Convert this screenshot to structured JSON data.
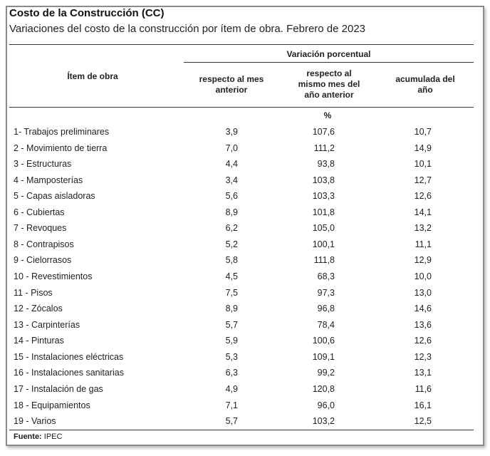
{
  "title": "Costo de la Construcción (CC)",
  "subtitle": "Variaciones del costo de la construcción por ítem de obra. Febrero de 2023",
  "table": {
    "item_header": "Ítem de obra",
    "group_header": "Variación porcentual",
    "columns": [
      "respecto al mes anterior",
      "respecto al mismo mes del año anterior",
      "acumulada del año"
    ],
    "unit": "%",
    "rows": [
      [
        "1- Trabajos  preliminares",
        "3,9",
        "107,6",
        "10,7"
      ],
      [
        "2 - Movimiento de tierra",
        "7,0",
        "111,2",
        "14,9"
      ],
      [
        "3 - Estructuras",
        "4,4",
        "93,8",
        "10,1"
      ],
      [
        "4 - Mamposterías",
        "3,4",
        "103,8",
        "12,7"
      ],
      [
        "5 - Capas aisladoras",
        "5,6",
        "103,3",
        "12,6"
      ],
      [
        "6 - Cubiertas",
        "8,9",
        "101,8",
        "14,1"
      ],
      [
        "7 - Revoques",
        "6,2",
        "105,0",
        "13,2"
      ],
      [
        "8 - Contrapisos",
        "5,2",
        "100,1",
        "11,1"
      ],
      [
        "9 - Cielorrasos",
        "5,8",
        "111,8",
        "12,9"
      ],
      [
        "10 - Revestimientos",
        "4,5",
        "68,3",
        "10,0"
      ],
      [
        "11 - Pisos",
        "7,5",
        "97,3",
        "13,0"
      ],
      [
        "12 - Zócalos",
        "8,9",
        "96,8",
        "14,6"
      ],
      [
        "13 - Carpinterías",
        "5,7",
        "78,4",
        "13,6"
      ],
      [
        "14 - Pinturas",
        "5,9",
        "100,6",
        "12,6"
      ],
      [
        "15 - Instalaciones eléctricas",
        "5,3",
        "109,1",
        "12,3"
      ],
      [
        "16 - Instalaciones sanitarias",
        "6,3",
        "99,2",
        "13,1"
      ],
      [
        "17 - Instalación de gas",
        "4,9",
        "120,8",
        "11,6"
      ],
      [
        "18 - Equipamientos",
        "7,1",
        "96,0",
        "16,1"
      ],
      [
        "19 - Varios",
        "5,7",
        "103,2",
        "12,5"
      ]
    ]
  },
  "source": {
    "label": "Fuente:",
    "value": " IPEC"
  }
}
